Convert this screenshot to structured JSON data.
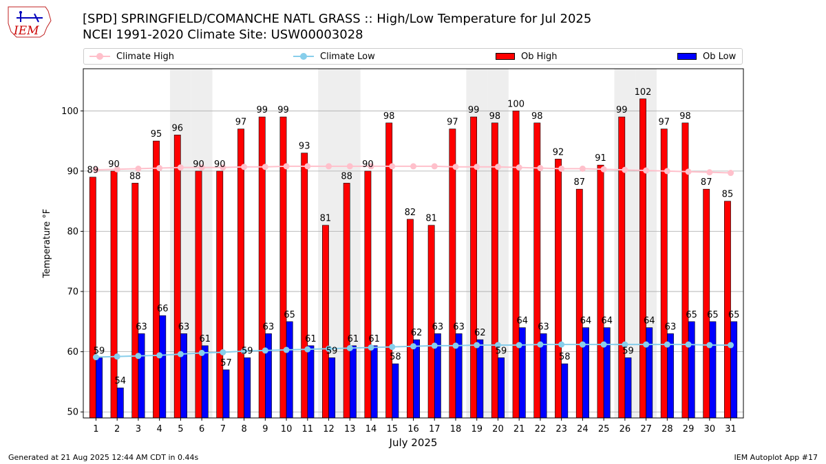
{
  "header": {
    "logo_text": "IEM",
    "title_line1": "[SPD] SPRINGFIELD/COMANCHE NATL GRASS :: High/Low Temperature for Jul 2025",
    "title_line2": "NCEI 1991-2020 Climate Site: USW00003028"
  },
  "legend": {
    "climate_high": "Climate High",
    "climate_low": "Climate Low",
    "ob_high": "Ob High",
    "ob_low": "Ob Low"
  },
  "colors": {
    "ob_high": "#ff0000",
    "ob_low": "#0000ff",
    "climate_high": "#ffc0cb",
    "climate_low": "#87ceeb",
    "weekend_shade": "#eeeeee",
    "grid": "#aaaaaa"
  },
  "chart_data": {
    "type": "bar",
    "xlabel": "July 2025",
    "ylabel": "Temperature °F",
    "ylim": [
      49,
      107
    ],
    "yticks": [
      50,
      60,
      70,
      80,
      90,
      100
    ],
    "grid": "horizontal",
    "legend_position": "top",
    "categories": [
      "1",
      "2",
      "3",
      "4",
      "5",
      "6",
      "7",
      "8",
      "9",
      "10",
      "11",
      "12",
      "13",
      "14",
      "15",
      "16",
      "17",
      "18",
      "19",
      "20",
      "21",
      "22",
      "23",
      "24",
      "25",
      "26",
      "27",
      "28",
      "29",
      "30",
      "31"
    ],
    "shaded_days": [
      5,
      6,
      12,
      13,
      19,
      20,
      26,
      27
    ],
    "series": [
      {
        "name": "Ob High",
        "kind": "bar",
        "values": [
          89,
          90,
          88,
          95,
          96,
          90,
          90,
          97,
          99,
          99,
          93,
          81,
          88,
          90,
          98,
          82,
          81,
          97,
          99,
          98,
          100,
          98,
          92,
          87,
          91,
          99,
          102,
          97,
          98,
          87,
          85
        ]
      },
      {
        "name": "Ob Low",
        "kind": "bar",
        "values": [
          59,
          54,
          63,
          66,
          63,
          61,
          57,
          59,
          63,
          65,
          61,
          59,
          61,
          61,
          58,
          62,
          63,
          63,
          62,
          59,
          64,
          63,
          58,
          64,
          64,
          59,
          64,
          63,
          65,
          65,
          65
        ]
      },
      {
        "name": "Climate High",
        "kind": "line",
        "values": [
          90.2,
          90.3,
          90.4,
          90.5,
          90.6,
          90.6,
          90.6,
          90.7,
          90.7,
          90.8,
          90.8,
          90.8,
          90.8,
          90.8,
          90.8,
          90.8,
          90.8,
          90.7,
          90.7,
          90.7,
          90.6,
          90.5,
          90.4,
          90.4,
          90.3,
          90.2,
          90.1,
          90.0,
          89.9,
          89.8,
          89.7
        ]
      },
      {
        "name": "Climate Low",
        "kind": "line",
        "values": [
          59.1,
          59.2,
          59.3,
          59.4,
          59.6,
          59.8,
          59.9,
          60.1,
          60.2,
          60.3,
          60.4,
          60.5,
          60.6,
          60.7,
          60.8,
          60.9,
          61.0,
          61.0,
          61.1,
          61.1,
          61.1,
          61.2,
          61.2,
          61.2,
          61.2,
          61.2,
          61.2,
          61.2,
          61.2,
          61.1,
          61.1
        ]
      }
    ]
  },
  "footer": {
    "left": "Generated at 21 Aug 2025 12:44 AM CDT in 0.44s",
    "right": "IEM Autoplot App #17"
  }
}
